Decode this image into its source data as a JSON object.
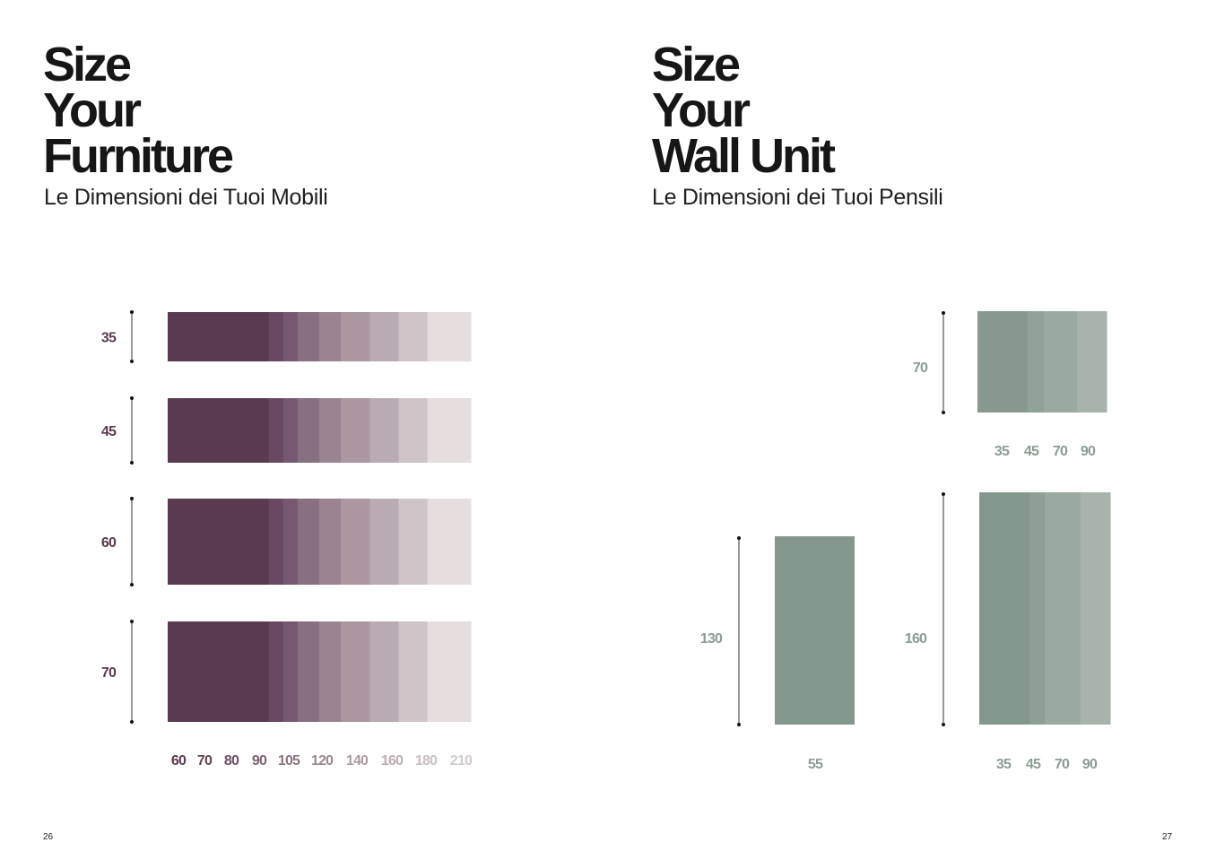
{
  "left_page": {
    "title_lines": [
      "Size",
      "Your",
      "Furniture"
    ],
    "subtitle": "Le Dimensioni dei Tuoi Mobili",
    "page_number": "26",
    "chart": {
      "heights": [
        "35",
        "45",
        "60",
        "70"
      ],
      "widths": [
        "60",
        "70",
        "80",
        "90",
        "105",
        "120",
        "140",
        "160",
        "180",
        "210"
      ],
      "width_values": [
        60,
        70,
        80,
        90,
        105,
        120,
        140,
        160,
        180,
        210
      ],
      "shade_colors": [
        "#5a3a4f",
        "#6a4960",
        "#765870",
        "#87707f",
        "#9a8491",
        "#aa979f",
        "#b9abb2",
        "#cfc4c8",
        "#e6dddf"
      ],
      "label_colors": [
        "#5a3a4f",
        "#61404f",
        "#6d4f62",
        "#7e6272",
        "#8c7482",
        "#9b8692",
        "#ac9ba4",
        "#bbadb4",
        "#c9bfc4",
        "#d2c9cd"
      ]
    }
  },
  "right_page": {
    "title_lines": [
      "Size",
      "Your",
      "Wall Unit"
    ],
    "subtitle": "Le Dimensioni dei Tuoi Pensili",
    "page_number": "27",
    "top_unit": {
      "height": "70",
      "widths": [
        "35",
        "45",
        "70",
        "90"
      ],
      "shade_colors": [
        "#87998f",
        "#8fa298",
        "#9aaaa1",
        "#a8b3ac"
      ]
    },
    "tall_unit": {
      "height": "130",
      "width": "55",
      "color": "#84978d"
    },
    "bottom_unit": {
      "height": "160",
      "widths": [
        "35",
        "45",
        "70",
        "90"
      ],
      "shade_colors": [
        "#84978d",
        "#8ea096",
        "#9aaaa1",
        "#a8b3ac"
      ]
    }
  }
}
